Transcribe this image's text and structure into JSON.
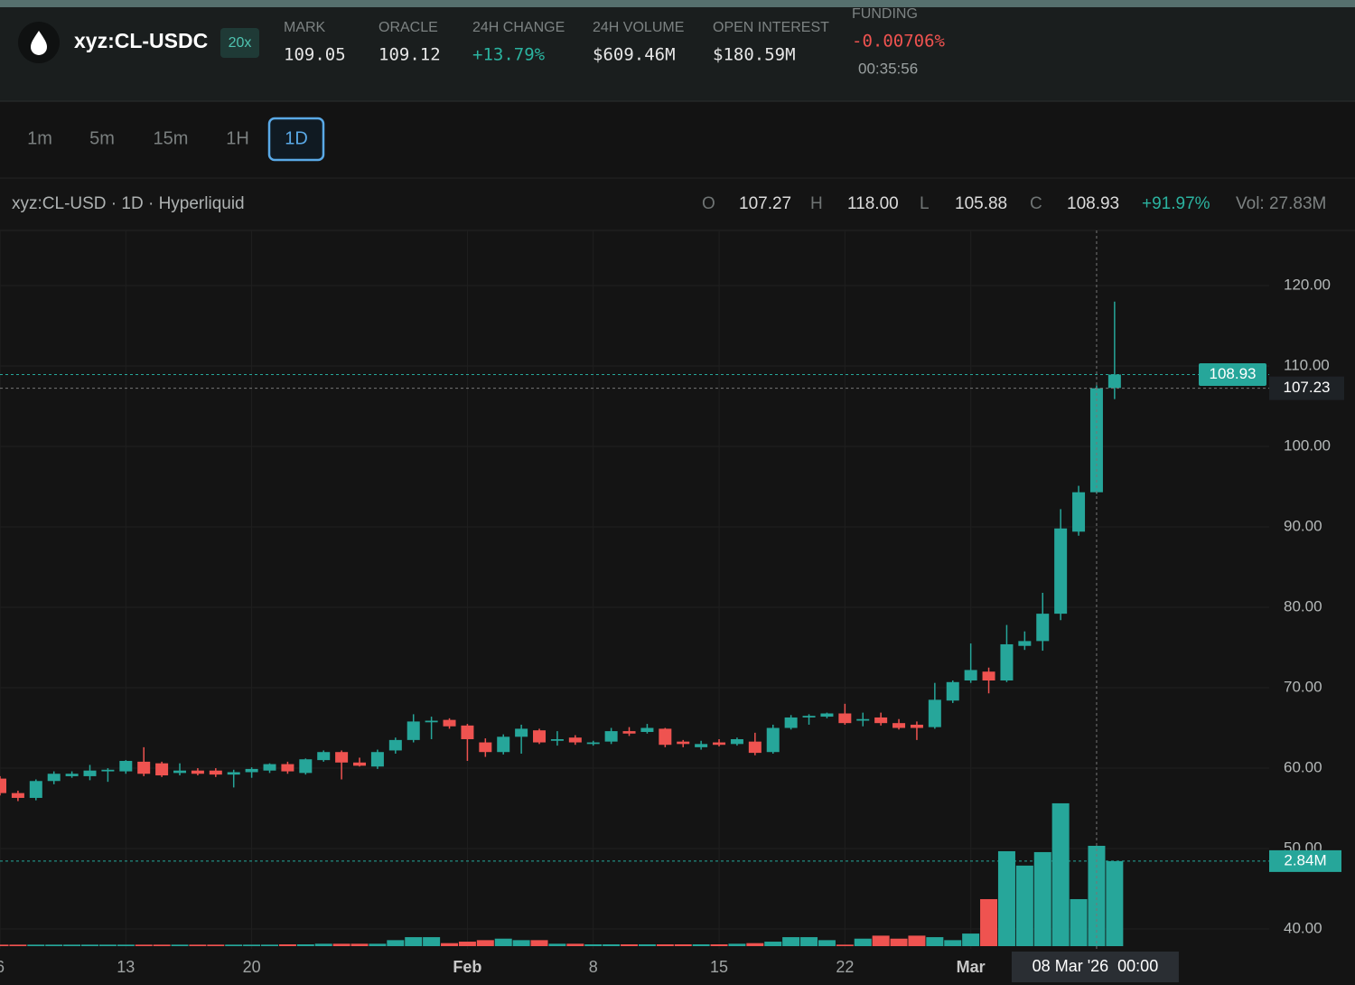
{
  "header": {
    "symbol": "xyz:CL-USDC",
    "leverage": "20x",
    "stats": [
      {
        "label": "MARK",
        "value": "109.05",
        "color": "#e6e6e6"
      },
      {
        "label": "ORACLE",
        "value": "109.12",
        "color": "#e6e6e6"
      },
      {
        "label": "24H CHANGE",
        "value": "+13.79%",
        "color": "#2bb3a0"
      },
      {
        "label": "24H VOLUME",
        "value": "$609.46M",
        "color": "#e6e6e6"
      },
      {
        "label": "OPEN INTEREST",
        "value": "$180.59M",
        "color": "#e6e6e6"
      }
    ],
    "funding": {
      "label": "FUNDING",
      "value": "-0.00706%",
      "countdown": "00:35:56"
    }
  },
  "timeframes": [
    "1m",
    "5m",
    "15m",
    "1H",
    "1D"
  ],
  "active_timeframe": "1D",
  "legend": {
    "title": "xyz:CL-USD · 1D · Hyperliquid",
    "ohlc": [
      {
        "key": "O",
        "value": "107.27"
      },
      {
        "key": "H",
        "value": "118.00"
      },
      {
        "key": "L",
        "value": "105.88"
      },
      {
        "key": "C",
        "value": "108.93"
      }
    ],
    "change": "+91.97%",
    "volume": "Vol: 27.83M"
  },
  "chart_data": {
    "type": "candlestick",
    "up_color": "#26a69a",
    "down_color": "#ef5350",
    "open": [
      58.7,
      56.9,
      56.3,
      58.4,
      59.0,
      59.0,
      59.6,
      59.6,
      60.8,
      60.6,
      59.4,
      59.7,
      59.7,
      59.2,
      59.5,
      59.7,
      60.5,
      59.4,
      61.0,
      62.0,
      60.7,
      60.2,
      62.2,
      63.5,
      65.7,
      66.0,
      65.3,
      63.2,
      62.0,
      63.9,
      64.7,
      63.4,
      63.8,
      63.0,
      63.3,
      64.6,
      64.5,
      64.9,
      63.3,
      62.6,
      63.2,
      63.0,
      63.3,
      62.0,
      65.0,
      66.3,
      66.4,
      66.8,
      65.9,
      66.3,
      65.6,
      65.4,
      65.1,
      68.4,
      70.9,
      72.0,
      70.9,
      75.2,
      75.8,
      79.2,
      89.4,
      94.3,
      107.27
    ],
    "high": [
      59.0,
      57.2,
      58.6,
      59.6,
      59.6,
      60.4,
      60.0,
      61.0,
      62.6,
      60.8,
      60.6,
      60.0,
      60.0,
      59.8,
      60.1,
      60.6,
      60.8,
      61.2,
      62.2,
      62.2,
      61.3,
      62.3,
      63.8,
      66.7,
      66.4,
      66.2,
      65.5,
      63.7,
      64.2,
      65.4,
      64.9,
      64.6,
      64.1,
      63.4,
      65.0,
      65.1,
      65.5,
      65.0,
      63.5,
      63.4,
      63.6,
      63.8,
      64.4,
      65.4,
      66.6,
      66.7,
      66.9,
      68.0,
      66.9,
      66.9,
      66.1,
      65.8,
      70.6,
      70.9,
      75.5,
      72.5,
      77.8,
      77.0,
      81.8,
      92.2,
      95.1,
      107.6,
      118.0
    ],
    "low": [
      56.6,
      55.9,
      56.0,
      58.0,
      58.8,
      58.5,
      58.3,
      59.3,
      59.0,
      58.9,
      59.1,
      59.1,
      58.9,
      57.6,
      58.8,
      59.4,
      59.3,
      59.2,
      60.8,
      58.6,
      60.2,
      59.9,
      61.8,
      63.2,
      63.6,
      64.9,
      60.9,
      61.4,
      61.7,
      61.8,
      63.0,
      62.8,
      62.9,
      62.8,
      63.0,
      64.0,
      64.3,
      62.6,
      62.6,
      62.3,
      62.7,
      62.8,
      61.6,
      61.8,
      64.8,
      65.4,
      66.2,
      65.4,
      65.2,
      65.3,
      64.8,
      63.5,
      64.9,
      68.1,
      70.6,
      69.3,
      70.7,
      74.7,
      74.6,
      78.4,
      88.9,
      94.1,
      105.88
    ],
    "close": [
      56.9,
      56.3,
      58.4,
      59.3,
      59.3,
      59.7,
      59.8,
      60.9,
      59.3,
      59.1,
      59.7,
      59.3,
      59.2,
      59.5,
      59.9,
      60.5,
      59.6,
      61.1,
      62.0,
      60.7,
      60.3,
      62.0,
      63.5,
      65.8,
      65.9,
      65.2,
      63.6,
      62.0,
      63.9,
      64.9,
      63.2,
      63.6,
      63.2,
      63.2,
      64.6,
      64.3,
      65.0,
      62.9,
      63.0,
      63.0,
      62.9,
      63.6,
      61.9,
      65.0,
      66.3,
      66.5,
      66.8,
      65.6,
      66.1,
      65.6,
      65.0,
      65.0,
      68.5,
      70.7,
      72.2,
      70.9,
      75.4,
      75.8,
      79.2,
      89.8,
      94.3,
      107.23,
      108.93
    ],
    "volume": [
      0.05,
      0.05,
      0.05,
      0.05,
      0.05,
      0.05,
      0.05,
      0.05,
      0.05,
      0.05,
      0.05,
      0.05,
      0.05,
      0.05,
      0.05,
      0.05,
      0.06,
      0.06,
      0.08,
      0.08,
      0.08,
      0.08,
      0.2,
      0.3,
      0.3,
      0.1,
      0.15,
      0.2,
      0.25,
      0.2,
      0.2,
      0.08,
      0.08,
      0.06,
      0.06,
      0.06,
      0.06,
      0.06,
      0.06,
      0.06,
      0.06,
      0.08,
      0.1,
      0.15,
      0.3,
      0.3,
      0.2,
      0.05,
      0.25,
      0.35,
      0.25,
      0.35,
      0.3,
      0.2,
      0.42,
      1.57,
      3.17,
      2.69,
      3.14,
      4.77,
      1.57,
      3.35,
      2.84
    ],
    "volume_label": "2.84M",
    "xlim": [
      0,
      70.6
    ],
    "ylim": [
      37.87,
      126.85
    ],
    "vlim": [
      0,
      23.9
    ],
    "yticks": [
      {
        "value": 40,
        "label": "40.00"
      },
      {
        "value": 50,
        "label": "50.00"
      },
      {
        "value": 60,
        "label": "60.00"
      },
      {
        "value": 70,
        "label": "70.00"
      },
      {
        "value": 80,
        "label": "80.00"
      },
      {
        "value": 90,
        "label": "90.00"
      },
      {
        "value": 100,
        "label": "100.00"
      },
      {
        "value": 110,
        "label": "110.00"
      },
      {
        "value": 120,
        "label": "120.00"
      }
    ],
    "xticks": [
      {
        "value": 0,
        "label": "6"
      },
      {
        "value": 7,
        "label": "13"
      },
      {
        "value": 14,
        "label": "20"
      },
      {
        "value": 26,
        "label": "Feb",
        "major": true
      },
      {
        "value": 33,
        "label": "8"
      },
      {
        "value": 40,
        "label": "15"
      },
      {
        "value": 47,
        "label": "22"
      },
      {
        "value": 54,
        "label": "Mar",
        "major": true
      }
    ],
    "last_price": {
      "value": 108.93,
      "label": "108.93"
    },
    "crosshair": {
      "x": 61,
      "price": {
        "value": 107.23,
        "label": "107.23"
      },
      "date_label": "08 Mar '26  00:00"
    }
  }
}
